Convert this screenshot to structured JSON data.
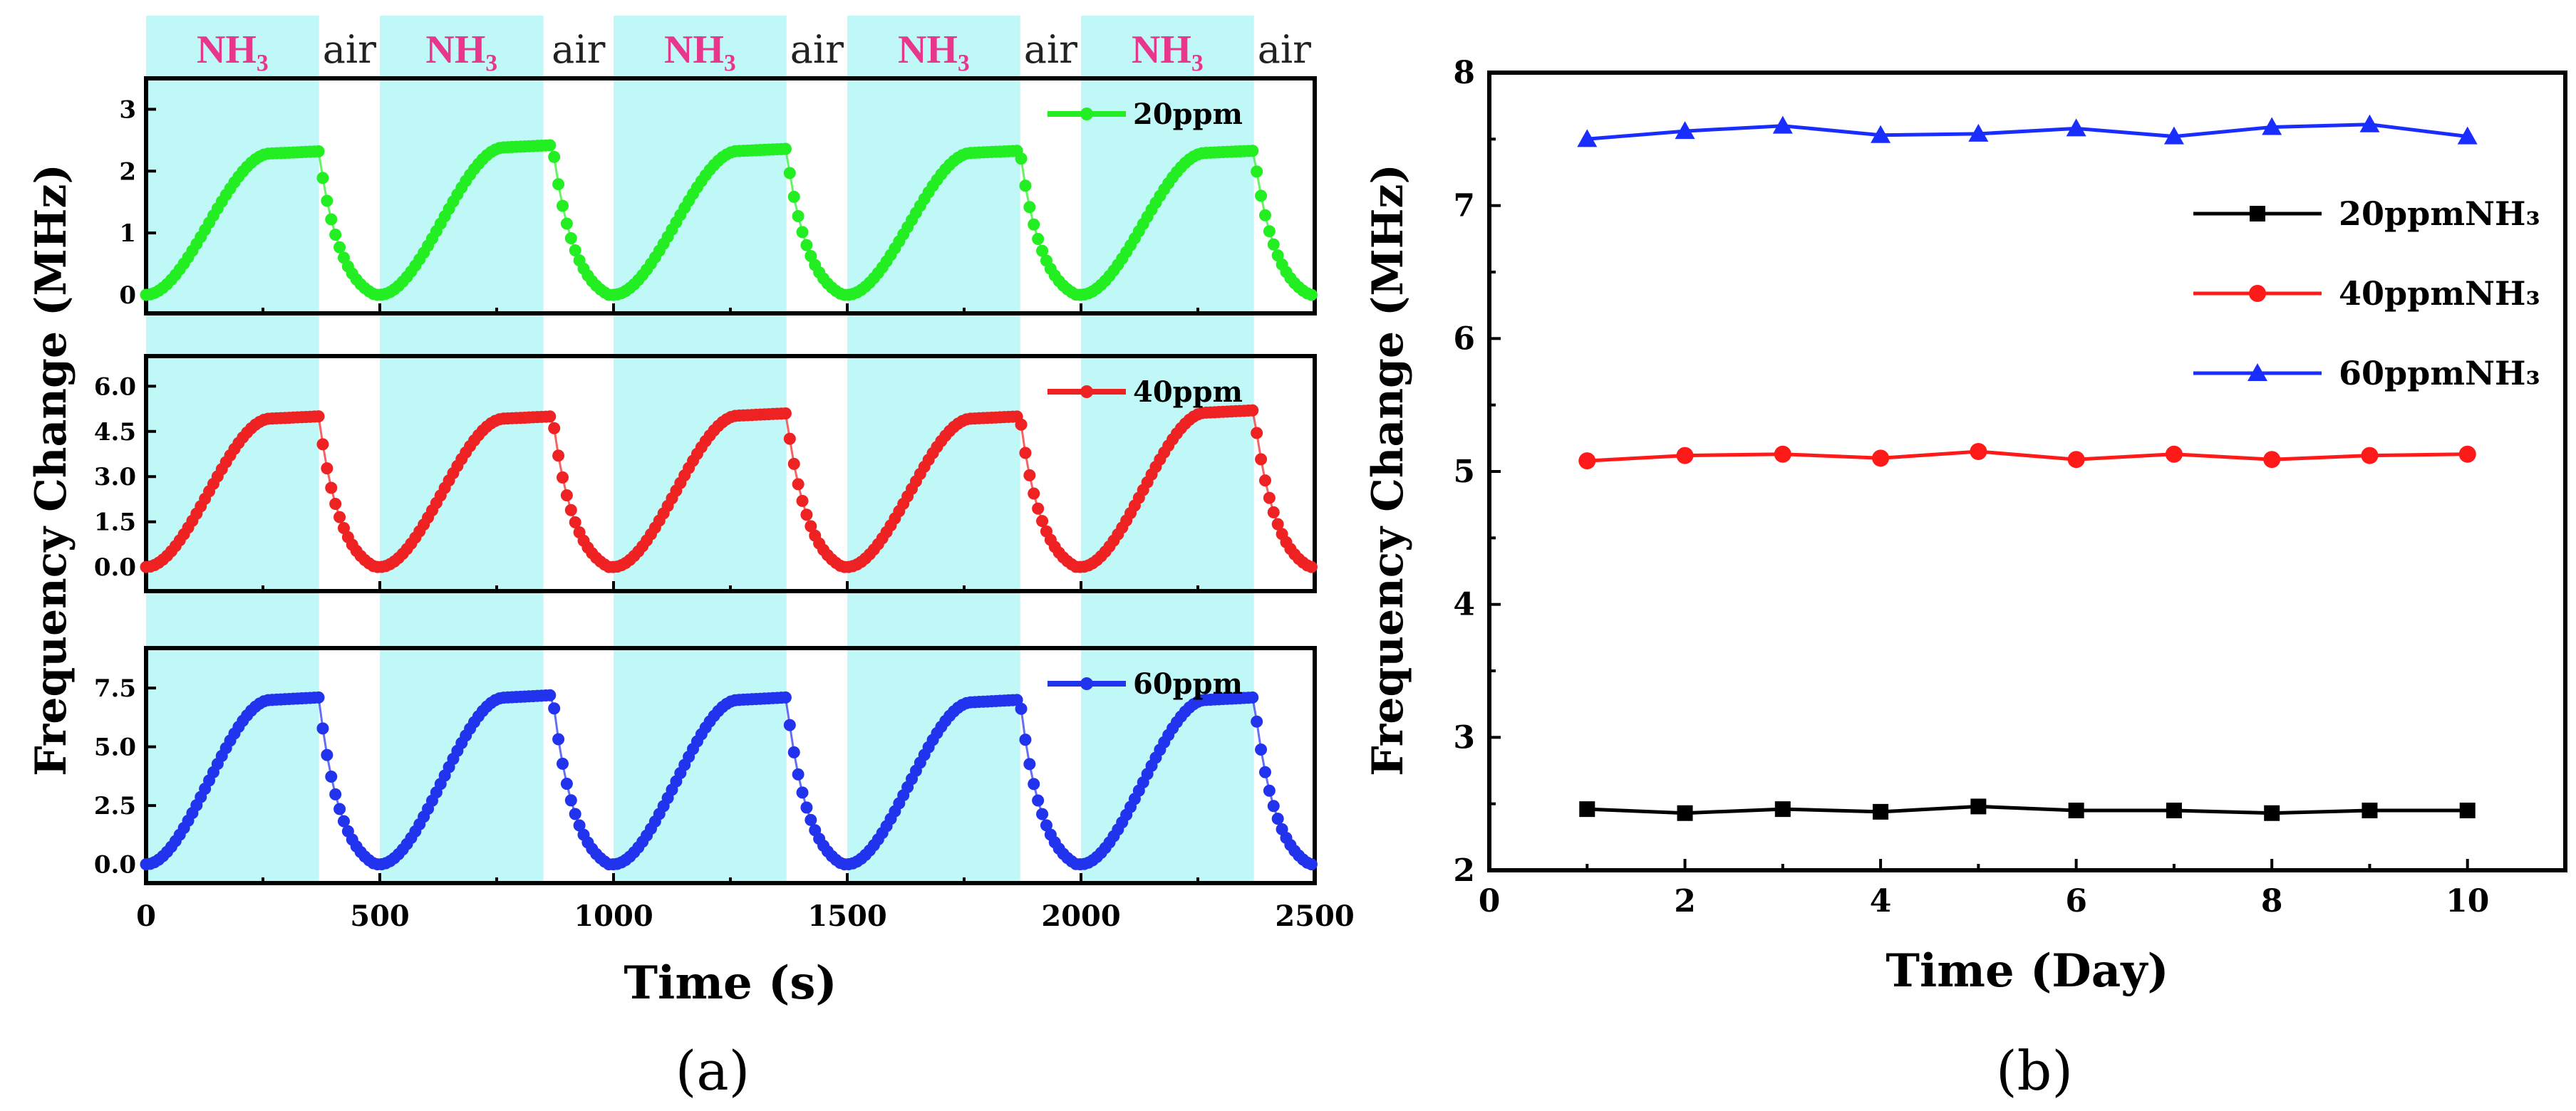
{
  "chart_data": [
    {
      "id": "a",
      "type": "line",
      "panel_label": "(a)",
      "xlabel": "Time (s)",
      "ylabel": "Frequency Change (MHz)",
      "xlim": [
        0,
        2500
      ],
      "x_ticks": [
        "0",
        "500",
        "1000",
        "1500",
        "2000",
        "2500"
      ],
      "gas_bands": {
        "labels": [
          "NH₃",
          "air",
          "NH₃",
          "air",
          "NH₃",
          "air",
          "NH₃",
          "air",
          "NH₃",
          "air"
        ],
        "nh3_intervals": [
          [
            0,
            370
          ],
          [
            500,
            850
          ],
          [
            1000,
            1370
          ],
          [
            1500,
            1870
          ],
          [
            2000,
            2370
          ]
        ],
        "nh3_color": "#c0f8f8",
        "nh3_label_color": "#e8368c"
      },
      "series": [
        {
          "name": "20ppm",
          "color": "#22ee22",
          "ylim": [
            -0.3,
            3.5
          ],
          "y_ticks": [
            "0",
            "1",
            "2",
            "3"
          ],
          "tick_values": [
            0,
            1,
            2,
            3
          ],
          "peaks": [
            2.32,
            2.42,
            2.36,
            2.33,
            2.33
          ]
        },
        {
          "name": "40ppm",
          "color": "#ee2222",
          "ylim": [
            -0.8,
            7.0
          ],
          "y_ticks": [
            "0.0",
            "1.5",
            "3.0",
            "4.5",
            "6.0"
          ],
          "tick_values": [
            0,
            1.5,
            3.0,
            4.5,
            6.0
          ],
          "peaks": [
            5.0,
            5.0,
            5.1,
            5.0,
            5.2
          ]
        },
        {
          "name": "60ppm",
          "color": "#2233ee",
          "ylim": [
            -0.8,
            9.2
          ],
          "y_ticks": [
            "0.0",
            "2.5",
            "5.0",
            "7.5"
          ],
          "tick_values": [
            0,
            2.5,
            5.0,
            7.5
          ],
          "peaks": [
            7.1,
            7.2,
            7.1,
            7.0,
            7.1
          ]
        }
      ]
    },
    {
      "id": "b",
      "type": "line",
      "panel_label": "(b)",
      "xlabel": "Time (Day)",
      "ylabel": "Frequency Change (MHz)",
      "xlim": [
        0,
        11
      ],
      "ylim": [
        2,
        8
      ],
      "x_ticks": [
        "0",
        "2",
        "4",
        "6",
        "8",
        "10"
      ],
      "x_tick_values": [
        0,
        2,
        4,
        6,
        8,
        10
      ],
      "y_ticks": [
        "2",
        "3",
        "4",
        "5",
        "6",
        "7",
        "8"
      ],
      "y_tick_values": [
        2,
        3,
        4,
        5,
        6,
        7,
        8
      ],
      "x": [
        1,
        2,
        3,
        4,
        5,
        6,
        7,
        8,
        9,
        10
      ],
      "legend_position": "top-right",
      "series": [
        {
          "name": "20ppmNH₃",
          "color": "#000000",
          "marker": "square",
          "values": [
            2.46,
            2.43,
            2.46,
            2.44,
            2.48,
            2.45,
            2.45,
            2.43,
            2.45,
            2.45
          ]
        },
        {
          "name": "40ppmNH₃",
          "color": "#ff1a1a",
          "marker": "circle",
          "values": [
            5.08,
            5.12,
            5.13,
            5.1,
            5.15,
            5.09,
            5.13,
            5.09,
            5.12,
            5.13
          ]
        },
        {
          "name": "60ppmNH₃",
          "color": "#1a2dff",
          "marker": "triangle",
          "values": [
            7.5,
            7.56,
            7.6,
            7.53,
            7.54,
            7.58,
            7.52,
            7.59,
            7.61,
            7.52
          ]
        }
      ]
    }
  ]
}
